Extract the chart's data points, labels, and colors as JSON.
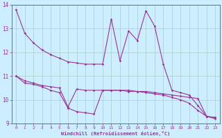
{
  "xlabel": "Windchill (Refroidissement éolien,°C)",
  "x": [
    0,
    1,
    2,
    3,
    4,
    5,
    6,
    7,
    8,
    9,
    10,
    11,
    12,
    13,
    14,
    15,
    16,
    17,
    18,
    19,
    20,
    21,
    22,
    23
  ],
  "line1": [
    13.8,
    12.8,
    12.4,
    12.1,
    11.9,
    11.75,
    11.6,
    11.55,
    11.5,
    11.5,
    11.5,
    13.4,
    11.65,
    12.9,
    12.5,
    13.75,
    13.1,
    11.5,
    10.4,
    10.3,
    10.2,
    9.75,
    9.3,
    9.25
  ],
  "line2": [
    11.0,
    10.8,
    10.7,
    10.6,
    10.55,
    10.5,
    9.7,
    10.45,
    10.4,
    10.4,
    10.4,
    10.4,
    10.4,
    10.35,
    10.35,
    10.35,
    10.3,
    10.25,
    10.2,
    10.15,
    10.1,
    10.05,
    9.3,
    9.25
  ],
  "line3": [
    11.0,
    10.7,
    10.65,
    10.55,
    10.4,
    10.3,
    9.65,
    9.5,
    9.45,
    9.4,
    10.4,
    10.4,
    10.4,
    10.4,
    10.35,
    10.3,
    10.25,
    10.2,
    10.1,
    10.0,
    9.85,
    9.55,
    9.3,
    9.2
  ],
  "ylim": [
    9,
    14
  ],
  "xlim": [
    -0.5,
    23.5
  ],
  "yticks": [
    9,
    10,
    11,
    12,
    13,
    14
  ],
  "color": "#993399",
  "bg_color": "#cceeff",
  "grid_color": "#aacccc",
  "fig_width": 3.2,
  "fig_height": 2.0,
  "dpi": 100
}
